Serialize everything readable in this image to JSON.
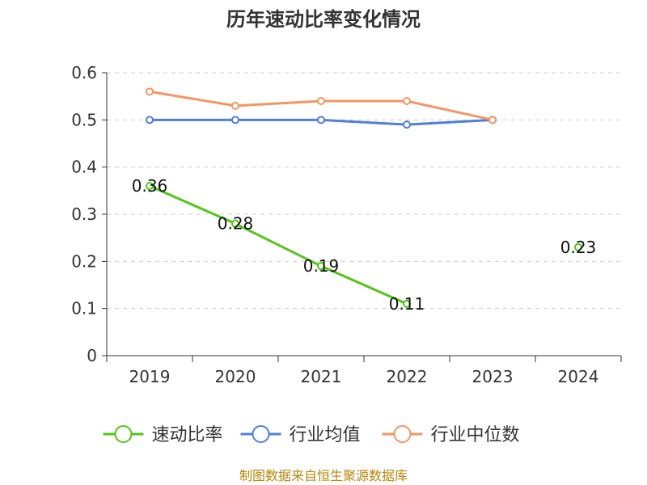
{
  "chart_data": {
    "type": "line",
    "title": "历年速动比率变化情况",
    "categories": [
      "2019",
      "2020",
      "2021",
      "2022",
      "2023",
      "2024"
    ],
    "ylim": [
      0,
      0.6
    ],
    "yticks": [
      "0",
      "0.1",
      "0.2",
      "0.3",
      "0.4",
      "0.5",
      "0.6"
    ],
    "grid": true,
    "legend_position": "bottom",
    "series": [
      {
        "name": "速动比率",
        "color": "#52c41a",
        "values": [
          0.36,
          0.28,
          0.19,
          0.11,
          null,
          0.23
        ],
        "labels": [
          "0.36",
          "0.28",
          "0.19",
          "0.11",
          "",
          "0.23"
        ]
      },
      {
        "name": "行业均值",
        "color": "#4f7fd9",
        "values": [
          0.5,
          0.5,
          0.5,
          0.49,
          0.5,
          null
        ]
      },
      {
        "name": "行业中位数",
        "color": "#f59563",
        "values": [
          0.56,
          0.53,
          0.54,
          0.54,
          0.5,
          null
        ]
      }
    ]
  },
  "source": "制图数据来自恒生聚源数据库"
}
